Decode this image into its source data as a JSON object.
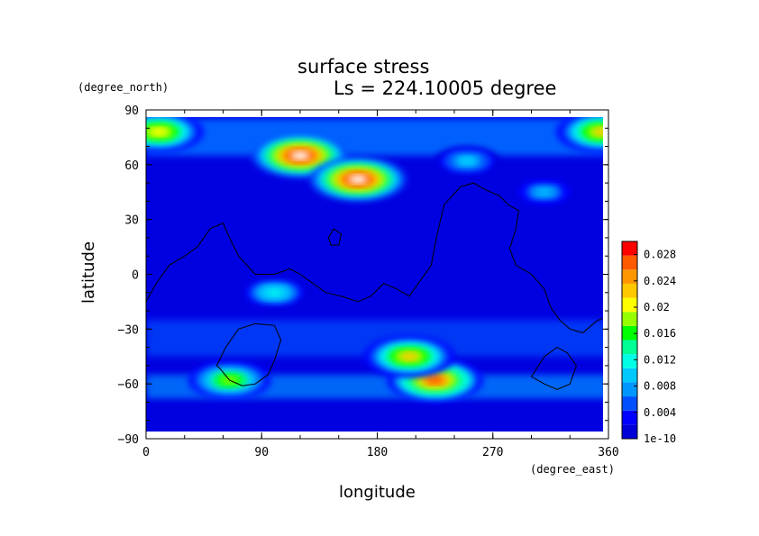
{
  "chart_data": {
    "type": "heatmap",
    "title": "surface stress",
    "subtitle": "Ls = 224.10005 degree",
    "xlabel": "longitude",
    "ylabel": "latitude",
    "xunit": "(degree_east)",
    "yunit": "(degree_north)",
    "xlim": [
      0,
      360
    ],
    "ylim": [
      -90,
      90
    ],
    "xticks": [
      0,
      90,
      180,
      270,
      360
    ],
    "yticks": [
      90,
      60,
      30,
      0,
      -30,
      -60,
      -90
    ],
    "colorbar": {
      "min": 0,
      "max": 0.03,
      "ticks": [
        {
          "value": 0.028,
          "label": "0.028"
        },
        {
          "value": 0.024,
          "label": "0.024"
        },
        {
          "value": 0.02,
          "label": "0.02"
        },
        {
          "value": 0.016,
          "label": "0.016"
        },
        {
          "value": 0.012,
          "label": "0.012"
        },
        {
          "value": 0.008,
          "label": "0.008"
        },
        {
          "value": 0.004,
          "label": "0.004"
        },
        {
          "value": 0.0,
          "label": "1e-10"
        }
      ]
    },
    "colors": [
      "#0000d8",
      "#0000ff",
      "#0050ff",
      "#0096ff",
      "#00c8ff",
      "#00ffe6",
      "#00ff96",
      "#00ff00",
      "#96ff00",
      "#ffff00",
      "#ffc800",
      "#ff9600",
      "#ff5a00",
      "#ff0000"
    ],
    "saturated_color": "#ffffff",
    "high_stress_regions": [
      {
        "lon": 120,
        "lat": 65,
        "value": 0.032
      },
      {
        "lon": 165,
        "lat": 52,
        "value": 0.031
      },
      {
        "lon": 225,
        "lat": -58,
        "value": 0.026
      },
      {
        "lon": 205,
        "lat": -45,
        "value": 0.022
      },
      {
        "lon": 65,
        "lat": -58,
        "value": 0.018
      },
      {
        "lon": 10,
        "lat": 78,
        "value": 0.021
      },
      {
        "lon": 355,
        "lat": 78,
        "value": 0.022
      },
      {
        "lon": 100,
        "lat": -10,
        "value": 0.012
      },
      {
        "lon": 310,
        "lat": 45,
        "value": 0.009
      },
      {
        "lon": 250,
        "lat": 62,
        "value": 0.01
      }
    ],
    "contours": [
      {
        "name": "topography",
        "points": [
          [
            0,
            -15
          ],
          [
            8,
            -5
          ],
          [
            18,
            5
          ],
          [
            30,
            10
          ],
          [
            40,
            15
          ],
          [
            50,
            25
          ],
          [
            60,
            28
          ],
          [
            65,
            20
          ],
          [
            72,
            10
          ],
          [
            85,
            0
          ],
          [
            100,
            0
          ],
          [
            112,
            3
          ],
          [
            120,
            0
          ],
          [
            130,
            -5
          ],
          [
            140,
            -10
          ],
          [
            152,
            -12
          ],
          [
            165,
            -15
          ],
          [
            175,
            -12
          ],
          [
            185,
            -5
          ],
          [
            195,
            -8
          ],
          [
            205,
            -12
          ],
          [
            212,
            -5
          ],
          [
            222,
            5
          ],
          [
            226,
            20
          ],
          [
            232,
            38
          ],
          [
            245,
            48
          ],
          [
            255,
            50
          ],
          [
            265,
            46
          ],
          [
            275,
            43
          ],
          [
            282,
            38
          ],
          [
            290,
            35
          ],
          [
            288,
            25
          ],
          [
            283,
            14
          ],
          [
            288,
            5
          ],
          [
            300,
            0
          ],
          [
            310,
            -8
          ],
          [
            315,
            -18
          ],
          [
            322,
            -25
          ],
          [
            330,
            -30
          ],
          [
            340,
            -32
          ],
          [
            350,
            -26
          ],
          [
            355,
            -24
          ]
        ]
      },
      {
        "name": "south-basin",
        "points": [
          [
            55,
            -50
          ],
          [
            62,
            -40
          ],
          [
            72,
            -30
          ],
          [
            85,
            -27
          ],
          [
            100,
            -28
          ],
          [
            105,
            -36
          ],
          [
            100,
            -47
          ],
          [
            95,
            -55
          ],
          [
            85,
            -60
          ],
          [
            75,
            -61
          ],
          [
            65,
            -58
          ],
          [
            58,
            -52
          ]
        ]
      },
      {
        "name": "southeast-basin",
        "points": [
          [
            300,
            -56
          ],
          [
            310,
            -45
          ],
          [
            320,
            -40
          ],
          [
            328,
            -43
          ],
          [
            335,
            -50
          ],
          [
            330,
            -60
          ],
          [
            320,
            -63
          ],
          [
            310,
            -60
          ]
        ]
      },
      {
        "name": "small-basin",
        "points": [
          [
            142,
            20
          ],
          [
            146,
            25
          ],
          [
            152,
            22
          ],
          [
            150,
            16
          ],
          [
            144,
            16
          ]
        ]
      }
    ]
  }
}
